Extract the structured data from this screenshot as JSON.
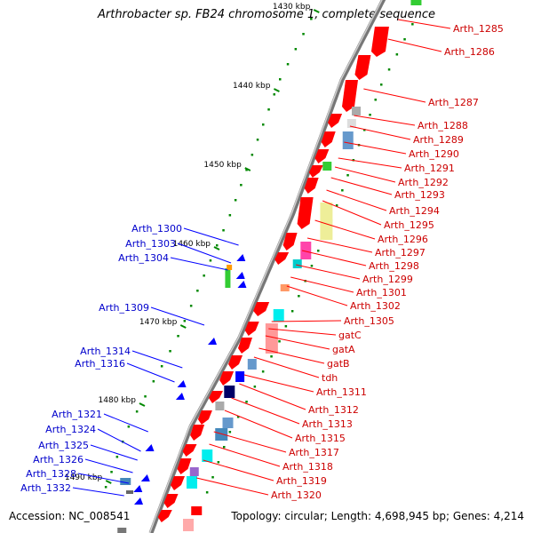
{
  "title": "Arthrobacter sp. FB24 chromosome 1, complete sequence",
  "accession": "Accession: NC_008541",
  "topology": "Topology: circular; Length: 4,698,945 bp; Genes: 4,214",
  "colors": {
    "forward": "#ff0000",
    "reverse": "#0000ff",
    "backbone": "#888888",
    "tick": "#008800"
  },
  "position_ticks": [
    "1430 kbp",
    "1440 kbp",
    "1450 kbp",
    "1460 kbp",
    "1470 kbp",
    "1480 kbp",
    "1490 kbp"
  ],
  "forward_labels": [
    "Arth_1285",
    "Arth_1286",
    "Arth_1287",
    "Arth_1288",
    "Arth_1289",
    "Arth_1290",
    "Arth_1291",
    "Arth_1292",
    "Arth_1293",
    "Arth_1294",
    "Arth_1295",
    "Arth_1296",
    "Arth_1297",
    "Arth_1298",
    "Arth_1299",
    "Arth_1301",
    "Arth_1302",
    "Arth_1305",
    "gatC",
    "gatA",
    "gatB",
    "tdh",
    "Arth_1311",
    "Arth_1312",
    "Arth_1313",
    "Arth_1315",
    "Arth_1317",
    "Arth_1318",
    "Arth_1319",
    "Arth_1320"
  ],
  "reverse_labels": [
    "Arth_1300",
    "Arth_1303",
    "Arth_1304",
    "Arth_1309",
    "Arth_1314",
    "Arth_1316",
    "Arth_1321",
    "Arth_1324",
    "Arth_1325",
    "Arth_1326",
    "Arth_1328",
    "Arth_1332"
  ]
}
